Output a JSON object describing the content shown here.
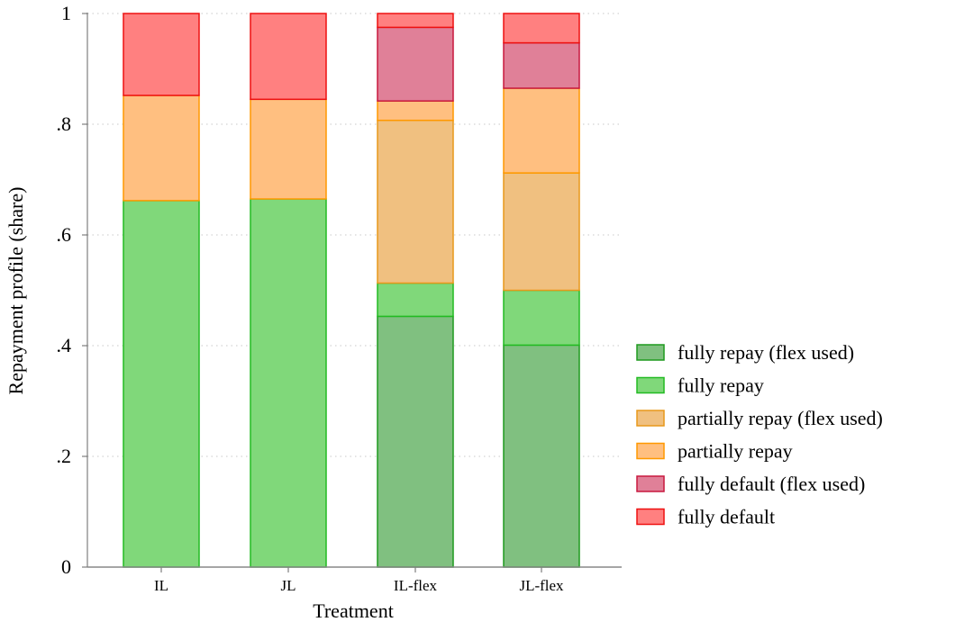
{
  "chart_data": {
    "type": "bar",
    "stacked": true,
    "orientation": "vertical",
    "categories": [
      "IL",
      "JL",
      "IL-flex",
      "JL-flex"
    ],
    "xlabel": "Treatment",
    "ylabel": "Repayment profile (share)",
    "ylim": [
      0,
      1
    ],
    "yticks": [
      {
        "value": 0,
        "label": "0"
      },
      {
        "value": 0.2,
        "label": ".2"
      },
      {
        "value": 0.4,
        "label": ".4"
      },
      {
        "value": 0.6,
        "label": ".6"
      },
      {
        "value": 0.8,
        "label": ".8"
      },
      {
        "value": 1,
        "label": "1"
      }
    ],
    "grid": "horizontal dotted",
    "legend_position": "right",
    "series": [
      {
        "name": "fully repay (flex used)",
        "fill": "#80c080",
        "stroke": "#1f9a1f",
        "values": [
          0,
          0,
          0.453,
          0.401
        ]
      },
      {
        "name": "fully repay",
        "fill": "#80d87a",
        "stroke": "#22bb22",
        "values": [
          0.662,
          0.665,
          0.06,
          0.099
        ]
      },
      {
        "name": "partially repay (flex used)",
        "fill": "#f0c080",
        "stroke": "#e8981a",
        "values": [
          0,
          0,
          0.294,
          0.212
        ]
      },
      {
        "name": "partially repay",
        "fill": "#ffbf80",
        "stroke": "#ff9900",
        "values": [
          0.19,
          0.18,
          0.035,
          0.153
        ]
      },
      {
        "name": "fully default (flex used)",
        "fill": "#e08098",
        "stroke": "#c8183e",
        "values": [
          0,
          0,
          0.133,
          0.082
        ]
      },
      {
        "name": "fully default",
        "fill": "#ff8080",
        "stroke": "#ee1111",
        "values": [
          0.148,
          0.155,
          0.025,
          0.053
        ]
      }
    ]
  }
}
